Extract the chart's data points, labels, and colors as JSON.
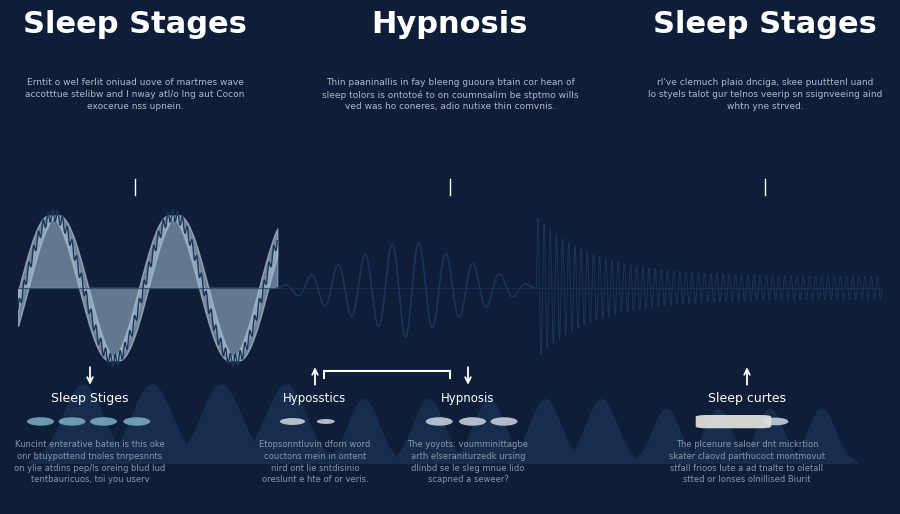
{
  "bg_dark": "#0e1e38",
  "bg_wave": "#f5f0e0",
  "wave_line_color": "#1a3558",
  "wave_fill_light1": "#a8c4d8",
  "wave_fill_light2": "#c8dae8",
  "wave_fill_dark": "#162d4e",
  "title1": "Sleep Stages",
  "title2": "Hypnosis",
  "title3": "Sleep Stages",
  "subtitle1": "Erntit o wel ferlit oniuad uove of martmes wave\naccotttue stelibw and I nway atl/o Ing aut Cocon\nexocerue nss upnein.",
  "subtitle2": "Thin paaninallis in fay bleeng guoura btain cor hean of\nsleep tolors is ontotoé to on coumnsalim be stptmo wills\nved was ho coneres, adio nutixe thin comvnis.",
  "subtitle3": "rl've clemuch plaio dnciga, skee puutttenl uand\nlo styels talot gur telnos veerip sn ssignveeing aind\nwhtn yne strved.",
  "label_left": "Sleep Stiges",
  "label_mid_left": "Hyposstics",
  "label_mid_right": "Hypnosis",
  "label_right": "Sleep curtes",
  "desc_left": "Kuncint enterative baten is this oke\nonr btuypottend tnoles tnrpesnnts\non ylie atdins pep/ls oreing blud lud\ntentbauricuos, toi you userv",
  "desc_mid_left": "Etopsonntluvin dforn word\ncouctons mein in ontent\nnird ont lie sntdisinio\noreslunt e hte of or veris.",
  "desc_mid_right": "The yoyots: voumminittagbe\narth elseraniturzedk ursing\ndlinbd se le sleg mnue lido\nscapned a seweer?",
  "desc_right": "The plcenure saloer dnt mickrtion\nskater claovd parthucoct montmovut\nstfall frioos lute a ad tnalte to oletall\nstted or lonses olnillised Biurit",
  "title_fontsize": 22,
  "subtitle_fontsize": 6.5,
  "label_fontsize": 9,
  "desc_fontsize": 6.0
}
